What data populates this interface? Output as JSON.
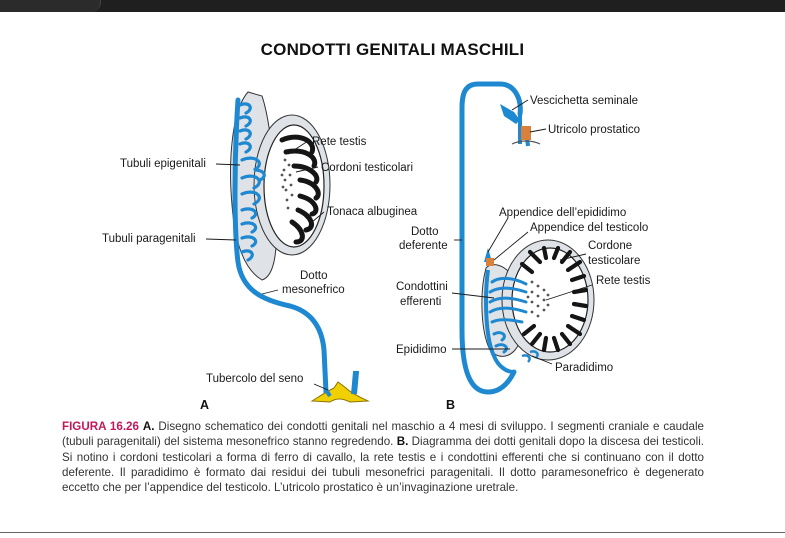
{
  "title": "CONDOTTI GENITALI MASCHILI",
  "labels_a": {
    "rete_testis": "Rete testis",
    "tubuli_epigenitali": "Tubuli epigenitali",
    "cordoni_testicolari": "Cordoni testicolari",
    "tonaca_albuginea": "Tonaca albuginea",
    "tubuli_paragenitali": "Tubuli paragenitali",
    "dotto_mesonefrico_1": "Dotto",
    "dotto_mesonefrico_2": "mesonefrico",
    "tubercolo_del_seno": "Tubercolo del seno",
    "panel": "A"
  },
  "labels_b": {
    "vescichetta_seminale": "Vescichetta seminale",
    "utricolo_prostatico": "Utricolo prostatico",
    "appendice_epididimo": "Appendice dell’epididimo",
    "appendice_testicolo": "Appendice del testicolo",
    "dotto_deferente_1": "Dotto",
    "dotto_deferente_2": "deferente",
    "cordone_testicolare_1": "Cordone",
    "cordone_testicolare_2": "testicolare",
    "rete_testis": "Rete testis",
    "condottini_efferenti_1": "Condottini",
    "condottini_efferenti_2": "efferenti",
    "epididimo": "Epididimo",
    "paradidimo": "Paradidimo",
    "panel": "B"
  },
  "caption": {
    "figure_number": "FIGURA 16.26",
    "a_marker": "A.",
    "text_a": " Disegno schematico dei condotti genitali nel maschio a 4 mesi di sviluppo. I segmenti craniale e caudale (tubuli paragenitali) del sistema mesonefrico stanno regredendo. ",
    "b_marker": "B.",
    "text_b": " Diagramma dei dotti genitali dopo la discesa dei testicoli. Si notino i cordoni testicolari a forma di ferro di cavallo, la rete testis e i condottini efferenti che si continuano con il dotto deferente. Il paradidimo è formato dai residui dei tubuli mesonefrici paragenitali. Il dotto paramesonefrico è degenerato eccetto che per l’appendice del testicolo. L’utricolo prostatico è un’invaginazione uretrale."
  },
  "colors": {
    "duct_blue": "#1e88d0",
    "cord_black": "#151515",
    "tissue_gray": "#dfe3e8",
    "tubercle_yellow": "#f0d000",
    "appendix_orange": "#d9803c",
    "figure_number_magenta": "#c2185b"
  }
}
